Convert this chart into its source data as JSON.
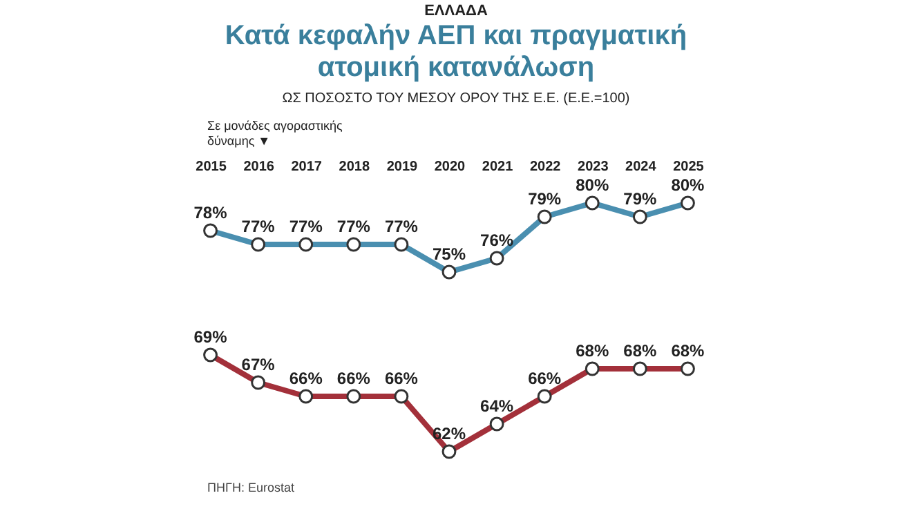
{
  "chart_data": {
    "type": "line",
    "title": "Κατά κεφαλήν ΑΕΠ και πραγματική ατομική κατανάλωση",
    "subtitle": "ΩΣ ΠΟΣΟΣΤΟ ΤΟΥ ΜΕΣΟΥ ΟΡΟΥ ΤΗΣ Ε.Ε. (Ε.Ε.=100)",
    "annotations": [
      "ΕΛΛΑΔΑ",
      "Σε μονάδες αγοραστικής δύναμης ▼",
      "ΠΗΓΗ: Eurostat"
    ],
    "categories": [
      "2015",
      "2016",
      "2017",
      "2018",
      "2019",
      "2020",
      "2021",
      "2022",
      "2023",
      "2024",
      "2025"
    ],
    "series": [
      {
        "color": "#4a8fb0",
        "values": [
          78,
          77,
          77,
          77,
          77,
          75,
          76,
          79,
          80,
          79,
          80
        ],
        "value_labels": [
          "78%",
          "77%",
          "77%",
          "77%",
          "77%",
          "75%",
          "76%",
          "79%",
          "80%",
          "79%",
          "80%"
        ]
      },
      {
        "color": "#a3303a",
        "values": [
          69,
          67,
          66,
          66,
          66,
          62,
          64,
          66,
          68,
          68,
          68
        ],
        "value_labels": [
          "69%",
          "67%",
          "66%",
          "66%",
          "66%",
          "62%",
          "64%",
          "66%",
          "68%",
          "68%",
          "68%"
        ]
      }
    ],
    "marker": "circle",
    "line_style": "solid",
    "grid": false,
    "legend": false
  }
}
